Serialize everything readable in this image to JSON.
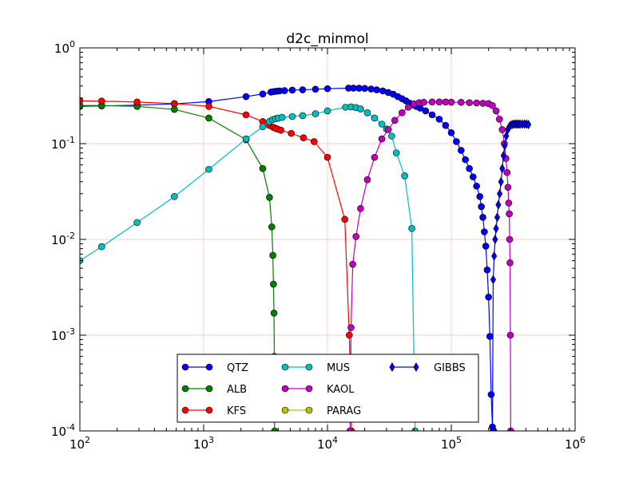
{
  "chart_data": {
    "type": "line",
    "title": "d2c_minmol",
    "xlabel": "",
    "ylabel": "",
    "xscale": "log",
    "yscale": "log",
    "xlim": [
      100,
      1000000
    ],
    "ylim": [
      0.0001,
      1
    ],
    "grid": true,
    "grid_color": "#ffcccc",
    "x_ticks": [
      {
        "value": 100,
        "base": "10",
        "exp": "2"
      },
      {
        "value": 1000,
        "base": "10",
        "exp": "3"
      },
      {
        "value": 10000,
        "base": "10",
        "exp": "4"
      },
      {
        "value": 100000,
        "base": "10",
        "exp": "5"
      },
      {
        "value": 1000000,
        "base": "10",
        "exp": "6"
      }
    ],
    "y_ticks": [
      {
        "value": 0.0001,
        "base": "10",
        "exp": "-4"
      },
      {
        "value": 0.001,
        "base": "10",
        "exp": "-3"
      },
      {
        "value": 0.01,
        "base": "10",
        "exp": "-2"
      },
      {
        "value": 0.1,
        "base": "10",
        "exp": "-1"
      },
      {
        "value": 1,
        "base": "10",
        "exp": "0"
      }
    ],
    "legend_position": "lower-center",
    "series": [
      {
        "name": "QTZ",
        "color": "#0000ff",
        "marker": "circle",
        "x": [
          100,
          150,
          290,
          580,
          1100,
          2200,
          3000,
          3500,
          3700,
          3900,
          4100,
          4500,
          5200,
          6300,
          8000,
          10000,
          14800,
          16200,
          18000,
          20000,
          22500,
          25000,
          28000,
          31000,
          34000,
          37000,
          40000,
          43000,
          46000,
          49000,
          52000,
          56000,
          62000,
          70000,
          80000,
          90000,
          100000,
          110000,
          120000,
          130000,
          140000,
          150000,
          160000,
          170000,
          175000,
          180000,
          185000,
          190000,
          195000,
          200000,
          205000,
          210000,
          215000,
          220000
        ],
        "y": [
          0.245,
          0.248,
          0.252,
          0.26,
          0.275,
          0.31,
          0.33,
          0.345,
          0.35,
          0.353,
          0.355,
          0.358,
          0.362,
          0.365,
          0.37,
          0.375,
          0.38,
          0.38,
          0.379,
          0.377,
          0.372,
          0.365,
          0.355,
          0.342,
          0.328,
          0.31,
          0.295,
          0.28,
          0.265,
          0.255,
          0.245,
          0.235,
          0.22,
          0.2,
          0.18,
          0.155,
          0.13,
          0.105,
          0.085,
          0.068,
          0.055,
          0.045,
          0.036,
          0.028,
          0.022,
          0.017,
          0.012,
          0.0085,
          0.0048,
          0.0025,
          0.00097,
          0.00024,
          0.00011,
          0.0001
        ]
      },
      {
        "name": "ALB",
        "color": "#008000",
        "marker": "circle",
        "x": [
          100,
          150,
          290,
          580,
          1100,
          2200,
          3000,
          3400,
          3550,
          3620,
          3660,
          3700,
          3720,
          3740
        ],
        "y": [
          0.25,
          0.25,
          0.245,
          0.228,
          0.185,
          0.11,
          0.055,
          0.0275,
          0.0135,
          0.0068,
          0.0034,
          0.0017,
          0.0006,
          0.0001
        ]
      },
      {
        "name": "KFS",
        "color": "#ff0000",
        "marker": "circle",
        "x": [
          100,
          150,
          290,
          580,
          1100,
          2200,
          3000,
          3400,
          3650,
          3800,
          3950,
          4200,
          5100,
          6400,
          7800,
          10000,
          13800,
          15000,
          15400,
          15600
        ],
        "y": [
          0.28,
          0.278,
          0.272,
          0.262,
          0.245,
          0.2,
          0.17,
          0.155,
          0.148,
          0.145,
          0.142,
          0.138,
          0.128,
          0.115,
          0.105,
          0.072,
          0.0162,
          0.001,
          0.0003,
          0.0001
        ]
      },
      {
        "name": "MUS",
        "color": "#00bfbf",
        "marker": "circle",
        "x": [
          100,
          150,
          290,
          580,
          1100,
          2200,
          3000,
          3400,
          3600,
          3800,
          4000,
          4300,
          5200,
          6300,
          8000,
          10000,
          14000,
          15500,
          17000,
          18500,
          21000,
          24000,
          27500,
          30000,
          33000,
          36000,
          42000,
          48000,
          50000,
          51000
        ],
        "y": [
          0.006,
          0.0084,
          0.015,
          0.028,
          0.054,
          0.112,
          0.15,
          0.17,
          0.178,
          0.182,
          0.185,
          0.188,
          0.192,
          0.196,
          0.205,
          0.22,
          0.24,
          0.242,
          0.238,
          0.23,
          0.21,
          0.185,
          0.16,
          0.142,
          0.12,
          0.08,
          0.046,
          0.013,
          0.0005,
          0.0001
        ]
      },
      {
        "name": "KAOL",
        "color": "#bf00bf",
        "marker": "circle",
        "x": [
          15200,
          15500,
          16000,
          17000,
          18500,
          21000,
          24000,
          27500,
          31000,
          35000,
          40000,
          45000,
          50000,
          55000,
          60000,
          70000,
          80000,
          90000,
          100000,
          120000,
          140000,
          160000,
          180000,
          200000,
          215000,
          230000,
          245000,
          258000,
          268000,
          276000,
          282000,
          287000,
          291000,
          294000,
          296000,
          298000,
          300000,
          302000
        ],
        "y": [
          0.0001,
          0.0012,
          0.0055,
          0.0107,
          0.021,
          0.042,
          0.072,
          0.112,
          0.14,
          0.175,
          0.21,
          0.24,
          0.26,
          0.268,
          0.27,
          0.272,
          0.272,
          0.272,
          0.271,
          0.27,
          0.268,
          0.266,
          0.264,
          0.262,
          0.25,
          0.22,
          0.18,
          0.14,
          0.1,
          0.07,
          0.05,
          0.035,
          0.024,
          0.0185,
          0.01,
          0.0057,
          0.001,
          0.0001
        ]
      },
      {
        "name": "PARAG",
        "color": "#bfbf00",
        "marker": "circle",
        "x": [],
        "y": []
      },
      {
        "name": "GIBBS",
        "color": "#0000ff",
        "marker": "diamond",
        "x": [
          215000,
          218000,
          222000,
          226000,
          230000,
          235000,
          240000,
          246000,
          252000,
          258000,
          264000,
          270000,
          278000,
          286000,
          294000,
          300000,
          310000,
          320000,
          330000,
          340000,
          350000,
          360000,
          375000,
          390000,
          405000,
          420000
        ],
        "y": [
          0.0001,
          0.0038,
          0.0067,
          0.01,
          0.013,
          0.017,
          0.023,
          0.03,
          0.04,
          0.055,
          0.075,
          0.095,
          0.12,
          0.14,
          0.15,
          0.155,
          0.158,
          0.16,
          0.16,
          0.16,
          0.16,
          0.16,
          0.16,
          0.16,
          0.16,
          0.158
        ]
      }
    ]
  }
}
